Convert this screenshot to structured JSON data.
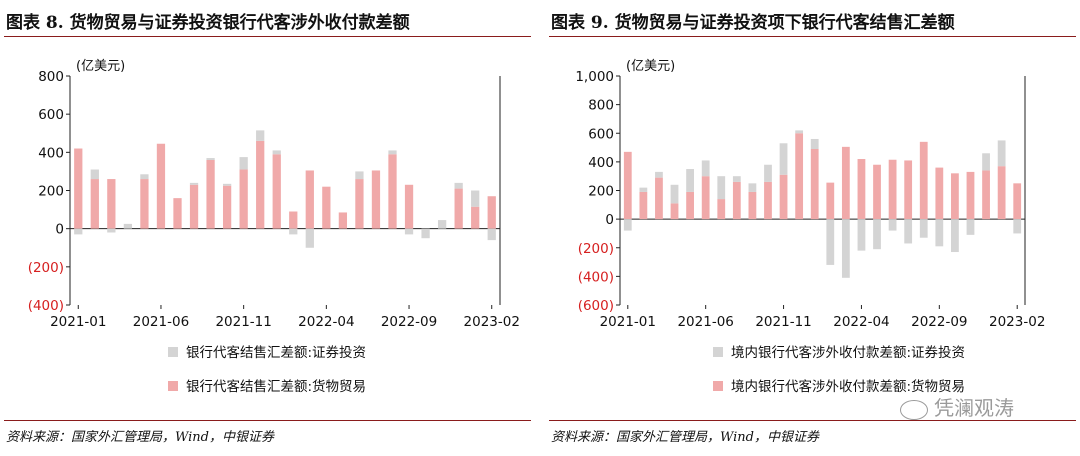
{
  "watermark": "凭澜观涛",
  "source_text": "资料来源：国家外汇管理局，Wind，中银证券",
  "chart_data": [
    {
      "type": "bar",
      "title": "图表 8. 货物贸易与证券投资银行代客涉外收付款差额",
      "unit_label": "(亿美元)",
      "ylim": [
        -400,
        800
      ],
      "yticks": [
        800,
        600,
        400,
        200,
        0,
        -200,
        -400
      ],
      "ytick_labels": [
        "800",
        "600",
        "400",
        "200",
        "0",
        "(200)",
        "(400)"
      ],
      "categories": [
        "2021-01",
        "2021-02",
        "2021-03",
        "2021-04",
        "2021-05",
        "2021-06",
        "2021-07",
        "2021-08",
        "2021-09",
        "2021-10",
        "2021-11",
        "2021-12",
        "2022-01",
        "2022-02",
        "2022-03",
        "2022-04",
        "2022-05",
        "2022-06",
        "2022-07",
        "2022-08",
        "2022-09",
        "2022-10",
        "2022-11",
        "2022-12",
        "2023-01",
        "2023-02"
      ],
      "xtick_labels": [
        "2021-01",
        "2021-06",
        "2021-11",
        "2022-04",
        "2022-09",
        "2023-02"
      ],
      "legend": [
        "银行代客结售汇差额:证券投资",
        "银行代客结售汇差额:货物贸易"
      ],
      "series": [
        {
          "name": "银行代客结售汇差额:货物贸易",
          "color": "#f0a9a9",
          "values": [
            420,
            260,
            260,
            0,
            260,
            445,
            160,
            230,
            360,
            225,
            310,
            460,
            390,
            90,
            305,
            220,
            85,
            260,
            305,
            390,
            230,
            0,
            0,
            210,
            115,
            170
          ]
        },
        {
          "name": "银行代客结售汇差额:证券投资",
          "color": "#d4d4d4",
          "values": [
            -30,
            50,
            -20,
            25,
            25,
            0,
            0,
            10,
            10,
            10,
            65,
            55,
            20,
            -30,
            -100,
            0,
            0,
            40,
            0,
            20,
            -30,
            -50,
            45,
            30,
            85,
            -60
          ]
        }
      ]
    },
    {
      "type": "bar",
      "title": "图表 9. 货物贸易与证券投资项下银行代客结售汇差额",
      "unit_label": "(亿美元)",
      "ylim": [
        -600,
        1000
      ],
      "yticks": [
        1000,
        800,
        600,
        400,
        200,
        0,
        -200,
        -400,
        -600
      ],
      "ytick_labels": [
        "1,000",
        "800",
        "600",
        "400",
        "200",
        "0",
        "(200)",
        "(400)",
        "(600)"
      ],
      "categories": [
        "2021-01",
        "2021-02",
        "2021-03",
        "2021-04",
        "2021-05",
        "2021-06",
        "2021-07",
        "2021-08",
        "2021-09",
        "2021-10",
        "2021-11",
        "2021-12",
        "2022-01",
        "2022-02",
        "2022-03",
        "2022-04",
        "2022-05",
        "2022-06",
        "2022-07",
        "2022-08",
        "2022-09",
        "2022-10",
        "2022-11",
        "2022-12",
        "2023-01",
        "2023-02"
      ],
      "xtick_labels": [
        "2021-01",
        "2021-06",
        "2021-11",
        "2022-04",
        "2022-09",
        "2023-02"
      ],
      "legend": [
        "境内银行代客涉外收付款差额:证券投资",
        "境内银行代客涉外收付款差额:货物贸易"
      ],
      "series": [
        {
          "name": "境内银行代客涉外收付款差额:货物贸易",
          "color": "#f0a9a9",
          "values": [
            470,
            190,
            290,
            110,
            190,
            300,
            140,
            260,
            190,
            260,
            310,
            600,
            490,
            255,
            505,
            420,
            380,
            415,
            410,
            540,
            360,
            320,
            330,
            340,
            370,
            250
          ]
        },
        {
          "name": "境内银行代客涉外收付款差额:证券投资",
          "color": "#d4d4d4",
          "values": [
            -80,
            30,
            40,
            130,
            160,
            110,
            160,
            40,
            60,
            120,
            220,
            20,
            70,
            -320,
            -410,
            -220,
            -210,
            -80,
            -170,
            -130,
            -190,
            -230,
            -110,
            120,
            180,
            -100
          ]
        }
      ]
    }
  ]
}
